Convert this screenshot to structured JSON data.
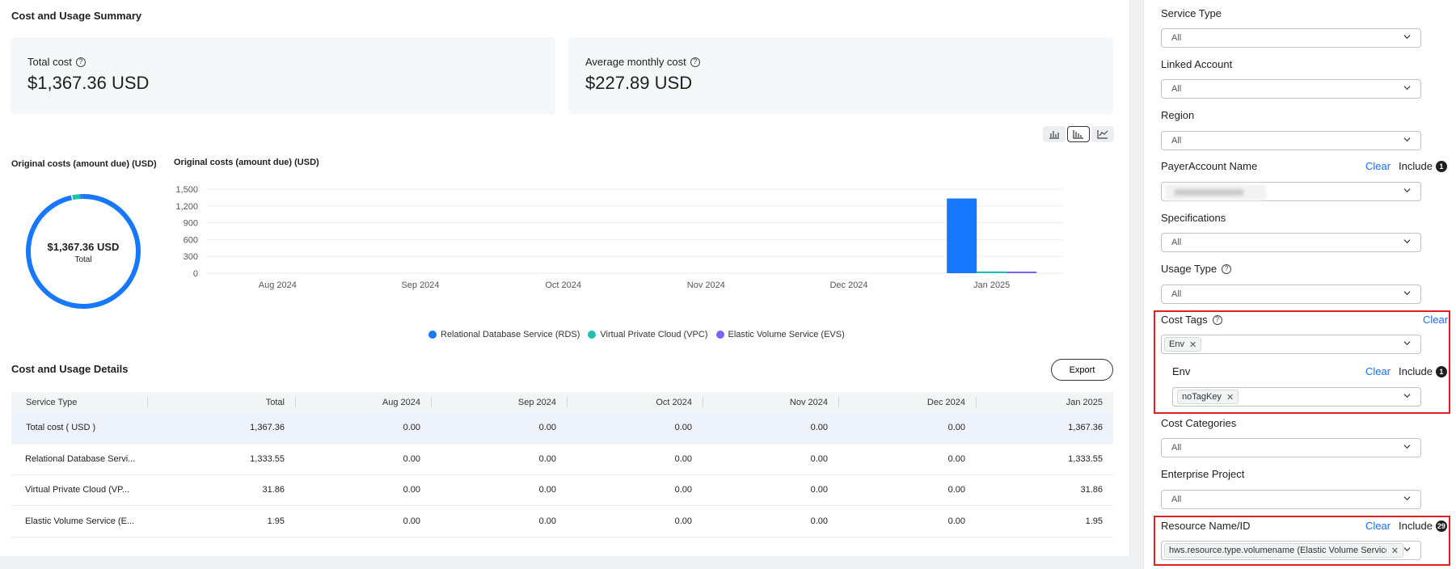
{
  "main": {
    "title": "Cost and Usage Summary",
    "total_cost": {
      "label": "Total cost",
      "value": "$1,367.36 USD"
    },
    "avg_cost": {
      "label": "Average monthly cost",
      "value": "$227.89 USD"
    },
    "view_toggle": [
      "stacked-bar-icon",
      "bar-chart-icon",
      "line-chart-icon"
    ],
    "donut_title": "Original costs (amount due) (USD)",
    "donut_amount": "$1,367.36 USD",
    "donut_total_label": "Total",
    "bar_title": "Original costs (amount due) (USD)",
    "legend": [
      {
        "name": "Relational Database Service (RDS)",
        "color": "#1677ff"
      },
      {
        "name": "Virtual Private Cloud (VPC)",
        "color": "#20c0b0"
      },
      {
        "name": "Elastic Volume Service (EVS)",
        "color": "#7b61ff"
      }
    ],
    "details_title": "Cost and Usage Details",
    "export_label": "Export",
    "table": {
      "headers": [
        "Service Type",
        "Total",
        "Aug 2024",
        "Sep 2024",
        "Oct 2024",
        "Nov 2024",
        "Dec 2024",
        "Jan 2025"
      ],
      "rows": [
        [
          "Total cost ( USD )",
          "1,367.36",
          "0.00",
          "0.00",
          "0.00",
          "0.00",
          "0.00",
          "1,367.36"
        ],
        [
          "Relational Database Servi...",
          "1,333.55",
          "0.00",
          "0.00",
          "0.00",
          "0.00",
          "0.00",
          "1,333.55"
        ],
        [
          "Virtual Private Cloud (VP...",
          "31.86",
          "0.00",
          "0.00",
          "0.00",
          "0.00",
          "0.00",
          "31.86"
        ],
        [
          "Elastic Volume Service (E...",
          "1.95",
          "0.00",
          "0.00",
          "0.00",
          "0.00",
          "0.00",
          "1.95"
        ]
      ]
    }
  },
  "chart_data": [
    {
      "type": "pie",
      "title": "Original costs (amount due) (USD)",
      "center_text": "$1,367.36 USD",
      "center_subtext": "Total",
      "labels": [
        "Relational Database Service (RDS)",
        "Virtual Private Cloud (VPC)",
        "Elastic Volume Service (EVS)"
      ],
      "values": [
        1333.55,
        31.86,
        1.95
      ],
      "colors": [
        "#1677ff",
        "#20c0b0",
        "#7b61ff"
      ]
    },
    {
      "type": "bar",
      "title": "Original costs (amount due) (USD)",
      "categories": [
        "Aug 2024",
        "Sep 2024",
        "Oct 2024",
        "Nov 2024",
        "Dec 2024",
        "Jan 2025"
      ],
      "series": [
        {
          "name": "Relational Database Service (RDS)",
          "color": "#1677ff",
          "values": [
            0,
            0,
            0,
            0,
            0,
            1333.55
          ]
        },
        {
          "name": "Virtual Private Cloud (VPC)",
          "color": "#20c0b0",
          "values": [
            0,
            0,
            0,
            0,
            0,
            31.86
          ]
        },
        {
          "name": "Elastic Volume Service (EVS)",
          "color": "#7b61ff",
          "values": [
            0,
            0,
            0,
            0,
            0,
            1.95
          ]
        }
      ],
      "ylim": [
        0,
        1500
      ],
      "yticks": [
        "0",
        "300",
        "600",
        "900",
        "1,200",
        "1,500"
      ],
      "grid": true,
      "legend": "bottom"
    }
  ],
  "filters": {
    "service_type": {
      "label": "Service Type",
      "value": "All"
    },
    "linked_account": {
      "label": "Linked Account",
      "value": "All"
    },
    "region": {
      "label": "Region",
      "value": "All"
    },
    "payer_account": {
      "label": "PayerAccount Name",
      "clear": "Clear",
      "include": "Include",
      "count": "1"
    },
    "specifications": {
      "label": "Specifications",
      "value": "All"
    },
    "usage_type": {
      "label": "Usage Type",
      "value": "All"
    },
    "cost_tags": {
      "label": "Cost Tags",
      "clear": "Clear",
      "tag": "Env"
    },
    "env": {
      "label": "Env",
      "clear": "Clear",
      "include": "Include",
      "count": "1",
      "tag": "noTagKey"
    },
    "cost_categories": {
      "label": "Cost Categories",
      "value": "All"
    },
    "enterprise_project": {
      "label": "Enterprise Project",
      "value": "All"
    },
    "resource": {
      "label": "Resource Name/ID",
      "clear": "Clear",
      "include": "Include",
      "count": "29",
      "tag": "hws.resource.type.volumename (Elastic Volume Service: V..."
    }
  }
}
